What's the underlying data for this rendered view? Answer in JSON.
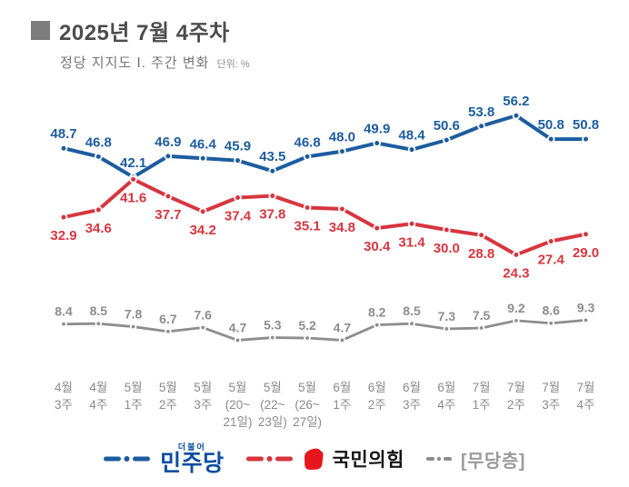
{
  "title": {
    "bullet": "■",
    "text": "2025년 7월 4주차"
  },
  "subtitle": {
    "text": "정당 지지도 Ⅰ. 주간 변화",
    "unit": "단위: %"
  },
  "chart_data": {
    "type": "line",
    "unit": "%",
    "grid": false,
    "legend_position": "bottom",
    "value_labels": true,
    "ylim": [
      0,
      60
    ],
    "categories": [
      "4월\n3주",
      "4월\n4주",
      "5월\n1주",
      "5월\n2주",
      "5월\n3주",
      "5월\n(20~\n21일)",
      "5월\n(22~\n23일)",
      "5월\n(26~\n27일)",
      "6월\n1주",
      "6월\n2주",
      "6월\n3주",
      "6월\n4주",
      "7월\n1주",
      "7월\n2주",
      "7월\n3주",
      "7월\n4주"
    ],
    "series": [
      {
        "name": "민주당",
        "color": "#1d5c9f",
        "values": [
          48.7,
          46.8,
          42.1,
          46.9,
          46.4,
          45.9,
          43.5,
          46.8,
          48.0,
          49.9,
          48.4,
          50.6,
          53.8,
          56.2,
          50.8,
          50.8
        ]
      },
      {
        "name": "국민의힘",
        "color": "#d8353e",
        "values": [
          32.9,
          34.6,
          41.6,
          37.7,
          34.2,
          37.4,
          37.8,
          35.1,
          34.8,
          30.4,
          31.4,
          30.0,
          28.8,
          24.3,
          27.4,
          29.0
        ]
      },
      {
        "name": "무당층",
        "color": "#8d8d8d",
        "values": [
          8.4,
          8.5,
          7.8,
          6.7,
          7.6,
          4.7,
          5.3,
          5.2,
          4.7,
          8.2,
          8.5,
          7.3,
          7.5,
          9.2,
          8.6,
          9.3
        ]
      }
    ]
  },
  "legend": {
    "items": [
      {
        "id": "minjoo",
        "top_label": "더불어",
        "label": "민주당",
        "line_color": "#1d5c9f",
        "text_color": "#0c4da2"
      },
      {
        "id": "ppp",
        "label": "국민의힘",
        "line_color": "#d8353e",
        "logo_color": "#e8151e",
        "text_color": "#141414"
      },
      {
        "id": "mudang",
        "label": "[무당층]",
        "line_color": "#8d8d8d",
        "text_color": "#9b9b9b"
      }
    ]
  }
}
